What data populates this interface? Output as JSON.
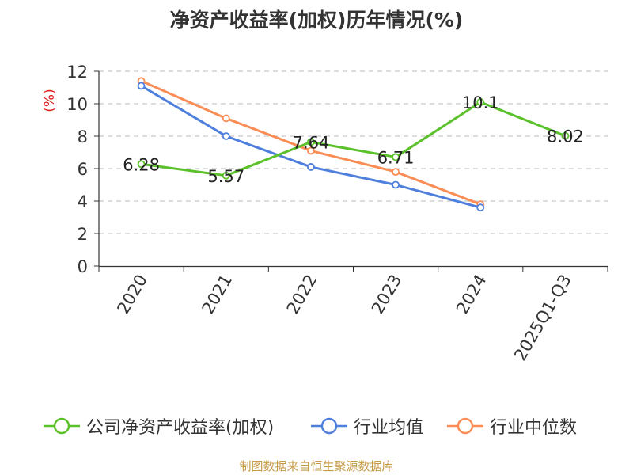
{
  "chart_data": {
    "type": "line",
    "title": "净资产收益率(加权)历年情况(%)",
    "ylabel": "(%)",
    "xlabel": "",
    "categories": [
      "2020",
      "2021",
      "2022",
      "2023",
      "2024",
      "2025Q1-Q3"
    ],
    "ylim": [
      0,
      12
    ],
    "yticks": [
      0,
      2,
      4,
      6,
      8,
      10,
      12
    ],
    "grid": true,
    "series": [
      {
        "name": "公司净资产收益率(加权)",
        "color": "#5bc12b",
        "values": [
          6.28,
          5.57,
          7.64,
          6.71,
          10.1,
          8.02
        ],
        "labels": [
          "6.28",
          "5.57",
          "7.64",
          "6.71",
          "10.1",
          "8.02"
        ]
      },
      {
        "name": "行业均值",
        "color": "#4f7fdc",
        "values": [
          11.1,
          8.0,
          6.1,
          5.0,
          3.6,
          null
        ],
        "labels": null
      },
      {
        "name": "行业中位数",
        "color": "#fa8c55",
        "values": [
          11.4,
          9.1,
          7.1,
          5.8,
          3.8,
          null
        ],
        "labels": null
      }
    ],
    "legend_position": "bottom"
  },
  "footer": {
    "source": "制图数据来自恒生聚源数据库"
  }
}
